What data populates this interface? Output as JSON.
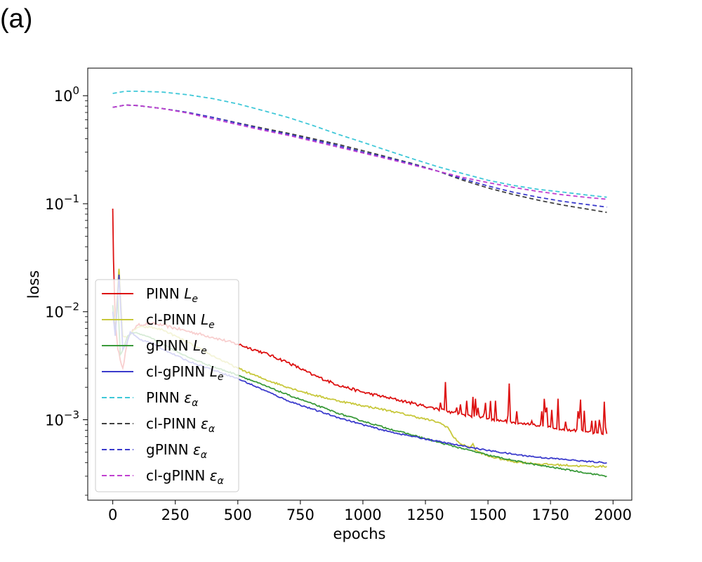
{
  "panel_label": "(a)",
  "chart_data": {
    "type": "line",
    "title": "",
    "xlabel": "epochs",
    "ylabel": "loss",
    "yscale": "log",
    "xlim": [
      -100,
      2075
    ],
    "ylim": [
      0.00018,
      1.8
    ],
    "xticks": [
      0,
      250,
      500,
      750,
      1000,
      1250,
      1500,
      1750,
      2000
    ],
    "xtick_labels": [
      "0",
      "250",
      "500",
      "750",
      "1000",
      "1250",
      "1500",
      "1750",
      "2000"
    ],
    "yticks": [
      1,
      0.1,
      0.01,
      0.001
    ],
    "ytick_labels": [
      {
        "base": "10",
        "exp": "0"
      },
      {
        "base": "10",
        "exp": "−1"
      },
      {
        "base": "10",
        "exp": "−2"
      },
      {
        "base": "10",
        "exp": "−3"
      }
    ],
    "legend_position": "lower-left",
    "series": [
      {
        "name": "PINN",
        "sym": "L",
        "sub": "e",
        "color": "#dd1111",
        "dash": "solid",
        "noise": 0.03,
        "spike_from": 1270,
        "x": [
          0,
          3,
          10,
          20,
          40,
          60,
          80,
          100,
          150,
          200,
          300,
          400,
          500,
          600,
          700,
          800,
          900,
          1000,
          1100,
          1200,
          1300,
          1400,
          1500,
          1600,
          1700,
          1800,
          1900,
          1975
        ],
        "y": [
          0.09,
          0.03,
          0.008,
          0.0045,
          0.003,
          0.0055,
          0.0068,
          0.0075,
          0.0078,
          0.0075,
          0.0066,
          0.0058,
          0.005,
          0.0042,
          0.0034,
          0.0026,
          0.0021,
          0.0018,
          0.0016,
          0.00142,
          0.00125,
          0.00112,
          0.00102,
          0.00095,
          0.00088,
          0.00082,
          0.00077,
          0.00074
        ]
      },
      {
        "name": "cl-PINN",
        "sym": "L",
        "sub": "e",
        "color": "#c8c83c",
        "dash": "solid",
        "noise": 0.02,
        "x": [
          0,
          10,
          25,
          40,
          60,
          80,
          100,
          150,
          200,
          300,
          400,
          500,
          600,
          700,
          800,
          900,
          1000,
          1100,
          1200,
          1300,
          1340,
          1360,
          1380,
          1400,
          1430,
          1440,
          1450,
          1500,
          1600,
          1700,
          1800,
          1900,
          1975
        ],
        "y": [
          0.01,
          0.008,
          0.025,
          0.006,
          0.0058,
          0.0066,
          0.0072,
          0.0072,
          0.0068,
          0.0052,
          0.0039,
          0.003,
          0.0024,
          0.002,
          0.0017,
          0.0015,
          0.00135,
          0.00122,
          0.00108,
          0.00095,
          0.00085,
          0.0007,
          0.00063,
          0.00058,
          0.00056,
          0.0006,
          0.00052,
          0.00046,
          0.00041,
          0.00039,
          0.00038,
          0.00037,
          0.00037
        ]
      },
      {
        "name": "gPINN",
        "sym": "L",
        "sub": "e",
        "color": "#3a9a3a",
        "dash": "solid",
        "noise": 0.015,
        "x": [
          0,
          10,
          20,
          30,
          45,
          60,
          80,
          100,
          150,
          200,
          300,
          400,
          500,
          600,
          700,
          800,
          900,
          1000,
          1100,
          1200,
          1300,
          1400,
          1500,
          1600,
          1700,
          1800,
          1900,
          1975
        ],
        "y": [
          0.0115,
          0.006,
          0.014,
          0.004,
          0.0047,
          0.006,
          0.0064,
          0.0063,
          0.0058,
          0.005,
          0.0038,
          0.0031,
          0.0026,
          0.0021,
          0.0017,
          0.0014,
          0.00115,
          0.00097,
          0.00083,
          0.00072,
          0.00062,
          0.00054,
          0.00047,
          0.00042,
          0.00038,
          0.00035,
          0.00032,
          0.0003
        ]
      },
      {
        "name": "cl-gPINN",
        "sym": "L",
        "sub": "e",
        "color": "#3b3bcc",
        "dash": "solid",
        "noise": 0.015,
        "x": [
          0,
          10,
          25,
          40,
          55,
          70,
          90,
          110,
          150,
          200,
          300,
          400,
          500,
          600,
          700,
          800,
          900,
          1000,
          1100,
          1200,
          1300,
          1400,
          1500,
          1600,
          1700,
          1800,
          1900,
          1975
        ],
        "y": [
          0.01,
          0.006,
          0.022,
          0.0045,
          0.005,
          0.0065,
          0.006,
          0.0055,
          0.0052,
          0.0045,
          0.0035,
          0.0029,
          0.0024,
          0.0019,
          0.0015,
          0.00125,
          0.00105,
          0.0009,
          0.00078,
          0.0007,
          0.00063,
          0.00057,
          0.00052,
          0.00048,
          0.00045,
          0.00043,
          0.00041,
          0.0004
        ]
      },
      {
        "name": "PINN",
        "sym": "ε",
        "sub": "α",
        "color": "#3fc8d8",
        "dash": "dashed",
        "x": [
          0,
          50,
          100,
          200,
          300,
          400,
          500,
          600,
          700,
          800,
          900,
          1000,
          1100,
          1200,
          1300,
          1400,
          1500,
          1600,
          1700,
          1800,
          1900,
          1975
        ],
        "y": [
          1.05,
          1.1,
          1.1,
          1.08,
          1.02,
          0.94,
          0.84,
          0.73,
          0.63,
          0.53,
          0.44,
          0.37,
          0.31,
          0.26,
          0.22,
          0.19,
          0.165,
          0.148,
          0.136,
          0.128,
          0.12,
          0.115
        ]
      },
      {
        "name": "cl-PINN",
        "sym": "ε",
        "sub": "α",
        "color": "#404040",
        "dash": "dashed",
        "x": [
          0,
          50,
          100,
          200,
          300,
          400,
          500,
          600,
          700,
          800,
          900,
          1000,
          1100,
          1200,
          1300,
          1400,
          1500,
          1600,
          1700,
          1800,
          1900,
          1975
        ],
        "y": [
          0.78,
          0.82,
          0.81,
          0.76,
          0.7,
          0.63,
          0.56,
          0.5,
          0.45,
          0.4,
          0.355,
          0.31,
          0.27,
          0.235,
          0.2,
          0.165,
          0.14,
          0.122,
          0.108,
          0.097,
          0.089,
          0.083
        ]
      },
      {
        "name": "gPINN",
        "sym": "ε",
        "sub": "α",
        "color": "#3b3bcc",
        "dash": "dashed",
        "x": [
          0,
          50,
          100,
          200,
          300,
          400,
          500,
          600,
          700,
          800,
          900,
          1000,
          1100,
          1200,
          1300,
          1400,
          1500,
          1600,
          1700,
          1800,
          1900,
          1975
        ],
        "y": [
          0.78,
          0.82,
          0.81,
          0.76,
          0.7,
          0.63,
          0.555,
          0.49,
          0.44,
          0.39,
          0.345,
          0.3,
          0.265,
          0.232,
          0.2,
          0.17,
          0.146,
          0.128,
          0.115,
          0.105,
          0.098,
          0.093
        ]
      },
      {
        "name": "cl-gPINN",
        "sym": "ε",
        "sub": "α",
        "color": "#c040d0",
        "dash": "dashed",
        "x": [
          0,
          50,
          100,
          200,
          300,
          400,
          500,
          600,
          700,
          800,
          900,
          1000,
          1100,
          1200,
          1300,
          1400,
          1500,
          1600,
          1700,
          1800,
          1900,
          1975
        ],
        "y": [
          0.78,
          0.82,
          0.81,
          0.76,
          0.69,
          0.61,
          0.54,
          0.48,
          0.43,
          0.38,
          0.335,
          0.295,
          0.26,
          0.228,
          0.2,
          0.175,
          0.157,
          0.142,
          0.13,
          0.121,
          0.114,
          0.11
        ]
      }
    ]
  }
}
